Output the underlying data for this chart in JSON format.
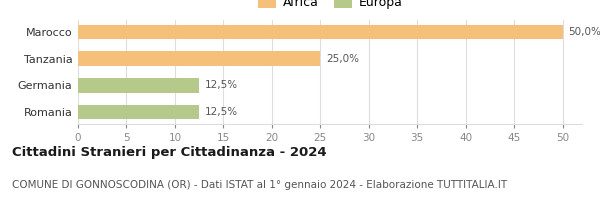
{
  "categories": [
    "Marocco",
    "Tanzania",
    "Germania",
    "Romania"
  ],
  "values": [
    50.0,
    25.0,
    12.5,
    12.5
  ],
  "labels": [
    "50,0%",
    "25,0%",
    "12,5%",
    "12,5%"
  ],
  "colors": [
    "#F5C07A",
    "#F5C07A",
    "#B5C98A",
    "#B5C98A"
  ],
  "legend": [
    {
      "label": "Africa",
      "color": "#F5C07A"
    },
    {
      "label": "Europa",
      "color": "#B5C98A"
    }
  ],
  "xlim": [
    0,
    52
  ],
  "xticks": [
    0,
    5,
    10,
    15,
    20,
    25,
    30,
    35,
    40,
    45,
    50
  ],
  "title": "Cittadini Stranieri per Cittadinanza - 2024",
  "subtitle": "COMUNE DI GONNOSCODINA (OR) - Dati ISTAT al 1° gennaio 2024 - Elaborazione TUTTITALIA.IT",
  "title_fontsize": 9.5,
  "subtitle_fontsize": 7.5,
  "bg_color": "#ffffff",
  "bar_edge_color": "none",
  "grid_color": "#dddddd",
  "label_color": "#555555",
  "tick_color": "#888888",
  "ytick_color": "#333333"
}
